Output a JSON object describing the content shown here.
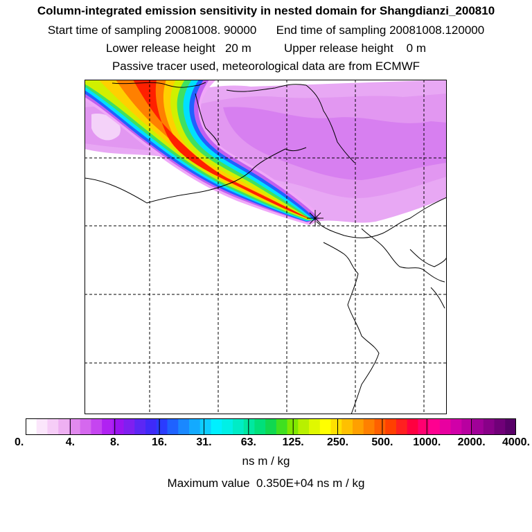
{
  "header": {
    "title": "Column-integrated emission sensitivity in nested domain for Shangdianzi_200810",
    "line2": "Start time of sampling 20081008. 90000      End time of sampling 20081008.120000",
    "line3": "Lower release height   20 m          Upper release height    0 m",
    "line4": "Passive tracer used, meteorological data are from ECMWF"
  },
  "colorbar": {
    "tick_labels": [
      "0.",
      "4.",
      "8.",
      "16.",
      "31.",
      "63.",
      "125.",
      "250.",
      "500.",
      "1000.",
      "2000.",
      "4000."
    ],
    "colors": [
      "#ffffff",
      "#fbe6fb",
      "#f6cdf7",
      "#eeb0f2",
      "#e18aee",
      "#d568ee",
      "#c545f0",
      "#b022f2",
      "#9a14f0",
      "#7f1ff0",
      "#5c27f4",
      "#3f2af8",
      "#2a3cff",
      "#1f62ff",
      "#1a88ff",
      "#13aaff",
      "#0dccff",
      "#00f0ff",
      "#00f0e6",
      "#00ecc6",
      "#00e8a0",
      "#00e07a",
      "#10d850",
      "#40e020",
      "#80e800",
      "#b8f000",
      "#e0f800",
      "#ffff00",
      "#ffe000",
      "#ffc000",
      "#ffa000",
      "#ff8000",
      "#ff6000",
      "#ff4000",
      "#ff2020",
      "#ff0040",
      "#ff0070",
      "#ff0090",
      "#e800a0",
      "#d000a8",
      "#b800a0",
      "#a00098",
      "#880088",
      "#700078",
      "#580068"
    ],
    "units": "ns m / kg"
  },
  "footer": {
    "max_value": "Maximum value  0.350E+04 ns m / kg"
  },
  "map": {
    "release_marker": "star-marker",
    "plume_colors": [
      "#f0a8f8",
      "#c060f0",
      "#2060ff",
      "#00e0ff",
      "#40e060",
      "#d0f000",
      "#ffd000",
      "#ff8000",
      "#ff2000"
    ]
  }
}
